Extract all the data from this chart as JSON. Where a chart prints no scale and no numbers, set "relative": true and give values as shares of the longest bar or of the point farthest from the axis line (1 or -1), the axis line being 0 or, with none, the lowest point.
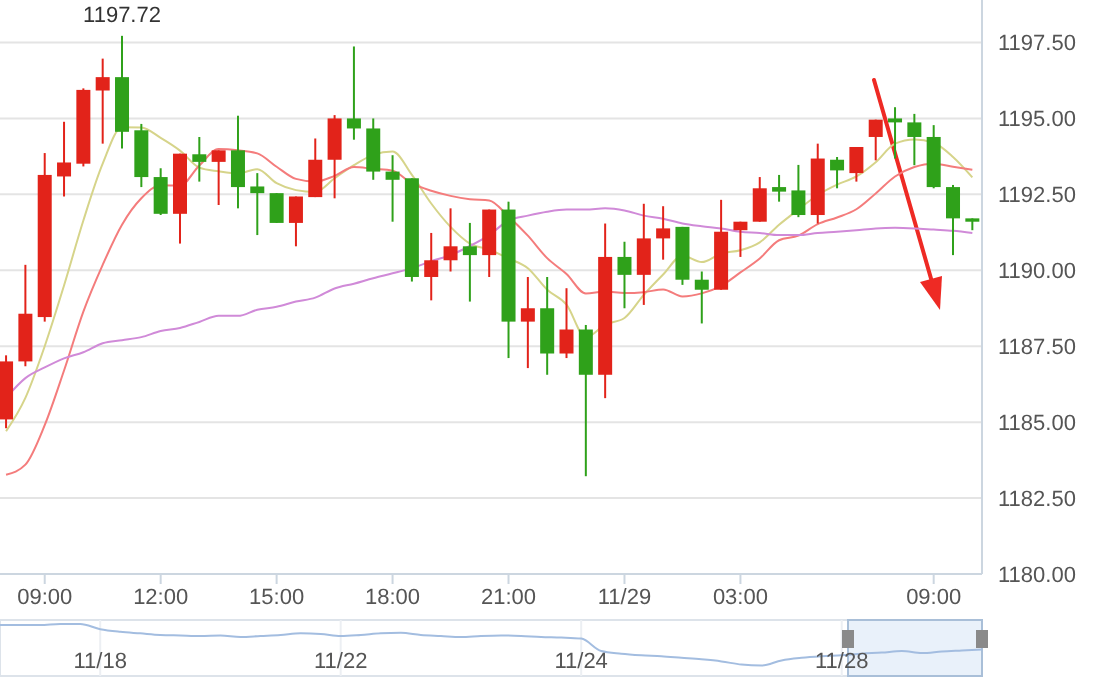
{
  "chart_data": [
    {
      "type": "candlestick",
      "categories": [
        null,
        null,
        "09:00",
        null,
        null,
        null,
        null,
        null,
        "12:00",
        null,
        null,
        null,
        null,
        null,
        "15:00",
        null,
        null,
        null,
        null,
        null,
        "18:00",
        null,
        null,
        null,
        null,
        null,
        "21:00",
        null,
        null,
        null,
        null,
        null,
        "11/29",
        null,
        null,
        null,
        null,
        null,
        "03:00",
        null,
        null,
        null,
        null,
        null,
        null,
        null,
        null,
        null,
        "09:00",
        null,
        null
      ],
      "ohlc": [
        [
          1185.09,
          1187.2,
          1184.8,
          1187.0
        ],
        [
          1187.0,
          1190.18,
          1186.84,
          1188.57
        ],
        [
          1188.46,
          1193.86,
          1188.31,
          1193.14
        ],
        [
          1193.09,
          1194.89,
          1192.43,
          1193.55
        ],
        [
          1193.51,
          1195.99,
          1193.42,
          1195.94
        ],
        [
          1195.92,
          1196.97,
          1194.17,
          1196.36
        ],
        [
          1196.36,
          1197.72,
          1194.01,
          1194.56
        ],
        [
          1194.61,
          1194.82,
          1192.74,
          1193.07
        ],
        [
          1193.07,
          1193.36,
          1191.82,
          1191.86
        ],
        [
          1191.86,
          1193.84,
          1190.88,
          1193.84
        ],
        [
          1193.82,
          1194.39,
          1192.92,
          1193.57
        ],
        [
          1193.57,
          1193.95,
          1192.15,
          1193.95
        ],
        [
          1193.95,
          1195.09,
          1192.04,
          1192.74
        ],
        [
          1192.76,
          1193.2,
          1191.16,
          1192.54
        ],
        [
          1192.54,
          1192.54,
          1191.56,
          1191.56
        ],
        [
          1191.56,
          1192.43,
          1190.79,
          1192.43
        ],
        [
          1192.41,
          1194.34,
          1192.41,
          1193.64
        ],
        [
          1193.64,
          1195.11,
          1192.37,
          1195.0
        ],
        [
          1195.0,
          1197.37,
          1194.3,
          1194.67
        ],
        [
          1194.67,
          1195.0,
          1192.98,
          1193.25
        ],
        [
          1193.25,
          1193.79,
          1191.6,
          1192.98
        ],
        [
          1193.03,
          1193.03,
          1189.63,
          1189.78
        ],
        [
          1189.78,
          1191.23,
          1189.01,
          1190.33
        ],
        [
          1190.33,
          1192.04,
          1189.96,
          1190.79
        ],
        [
          1190.79,
          1191.56,
          1188.97,
          1190.5
        ],
        [
          1190.5,
          1192.0,
          1189.78,
          1192.0
        ],
        [
          1192.0,
          1192.26,
          1187.11,
          1188.31
        ],
        [
          1188.31,
          1189.78,
          1186.78,
          1188.75
        ],
        [
          1188.75,
          1189.78,
          1186.56,
          1187.26
        ],
        [
          1187.26,
          1189.41,
          1187.11,
          1188.05
        ],
        [
          1188.05,
          1188.2,
          1183.22,
          1186.56
        ],
        [
          1186.56,
          1191.54,
          1185.79,
          1190.44
        ],
        [
          1190.44,
          1190.94,
          1188.75,
          1189.85
        ],
        [
          1189.85,
          1192.19,
          1188.86,
          1191.05
        ],
        [
          1191.05,
          1192.11,
          1190.35,
          1191.38
        ],
        [
          1191.43,
          1191.43,
          1189.52,
          1189.69
        ],
        [
          1189.69,
          1189.96,
          1188.25,
          1189.36
        ],
        [
          1189.36,
          1192.32,
          1189.36,
          1191.27
        ],
        [
          1191.32,
          1191.6,
          1190.44,
          1191.6
        ],
        [
          1191.6,
          1193.07,
          1191.6,
          1192.7
        ],
        [
          1192.74,
          1193.14,
          1192.26,
          1192.59
        ],
        [
          1192.63,
          1193.47,
          1191.75,
          1191.82
        ],
        [
          1191.82,
          1194.17,
          1191.54,
          1193.68
        ],
        [
          1193.64,
          1193.73,
          1192.7,
          1193.29
        ],
        [
          1193.2,
          1194.06,
          1192.92,
          1194.06
        ],
        [
          1194.39,
          1194.96,
          1193.62,
          1194.96
        ],
        [
          1195.0,
          1195.37,
          1193.68,
          1194.87
        ],
        [
          1194.87,
          1195.15,
          1193.46,
          1194.39
        ],
        [
          1194.39,
          1194.78,
          1192.7,
          1192.74
        ],
        [
          1192.74,
          1192.81,
          1190.5,
          1191.71
        ],
        [
          1191.71,
          1191.71,
          1191.32,
          1191.6
        ]
      ],
      "colors": [
        "#e2231a",
        "#e2231a",
        "#e2231a",
        "#e2231a",
        "#e2231a",
        "#e2231a",
        "#2fa11a",
        "#2fa11a",
        "#2fa11a",
        "#e2231a",
        "#2fa11a",
        "#e2231a",
        "#2fa11a",
        "#2fa11a",
        "#2fa11a",
        "#e2231a",
        "#e2231a",
        "#e2231a",
        "#2fa11a",
        "#2fa11a",
        "#2fa11a",
        "#2fa11a",
        "#e2231a",
        "#e2231a",
        "#2fa11a",
        "#e2231a",
        "#2fa11a",
        "#e2231a",
        "#2fa11a",
        "#e2231a",
        "#2fa11a",
        "#e2231a",
        "#2fa11a",
        "#e2231a",
        "#e2231a",
        "#2fa11a",
        "#2fa11a",
        "#e2231a",
        "#e2231a",
        "#e2231a",
        "#2fa11a",
        "#2fa11a",
        "#e2231a",
        "#2fa11a",
        "#e2231a",
        "#e2231a",
        "#2fa11a",
        "#2fa11a",
        "#2fa11a",
        "#2fa11a",
        "#2fa11a"
      ],
      "series": [
        {
          "type": "line",
          "color": "#d6d48a",
          "values": [
            1184.7,
            1185.8,
            1187.5,
            1189.5,
            1191.64,
            1193.51,
            1194.71,
            1194.7,
            1194.36,
            1193.94,
            1193.38,
            1193.26,
            1193.19,
            1193.33,
            1192.87,
            1192.64,
            1192.58,
            1193.03,
            1193.46,
            1193.8,
            1193.91,
            1193.14,
            1192.2,
            1191.43,
            1190.88,
            1190.68,
            1190.39,
            1190.07,
            1189.36,
            1188.87,
            1187.79,
            1188.21,
            1188.43,
            1189.19,
            1189.86,
            1190.48,
            1190.27,
            1190.55,
            1190.66,
            1190.92,
            1191.5,
            1192.0,
            1192.48,
            1192.82,
            1193.09,
            1193.56,
            1194.17,
            1194.31,
            1194.2,
            1193.73,
            1193.06
          ]
        },
        {
          "type": "line",
          "color": "#f47c7c",
          "values": [
            1183.27,
            1183.6,
            1184.9,
            1186.7,
            1188.64,
            1190.18,
            1191.5,
            1192.37,
            1192.8,
            1192.79,
            1193.45,
            1193.99,
            1193.95,
            1193.85,
            1193.41,
            1193.01,
            1192.92,
            1193.11,
            1193.4,
            1193.34,
            1193.28,
            1192.86,
            1192.62,
            1192.45,
            1192.34,
            1192.3,
            1191.77,
            1191.14,
            1190.4,
            1189.88,
            1189.24,
            1189.3,
            1189.25,
            1189.28,
            1189.37,
            1189.14,
            1189.24,
            1189.49,
            1189.93,
            1190.39,
            1190.99,
            1191.14,
            1191.52,
            1191.74,
            1192.01,
            1192.53,
            1193.09,
            1193.4,
            1193.51,
            1193.41,
            1193.31
          ]
        },
        {
          "type": "line",
          "color": "#d08ad8",
          "values": [
            1185.8,
            1186.45,
            1186.8,
            1187.1,
            1187.3,
            1187.6,
            1187.7,
            1187.8,
            1188.0,
            1188.1,
            1188.3,
            1188.5,
            1188.5,
            1188.7,
            1188.8,
            1188.97,
            1189.1,
            1189.4,
            1189.56,
            1189.74,
            1189.9,
            1190.07,
            1190.3,
            1190.5,
            1190.8,
            1191.16,
            1191.64,
            1191.8,
            1191.93,
            1192.0,
            1192.0,
            1192.04,
            1191.97,
            1191.8,
            1191.7,
            1191.54,
            1191.45,
            1191.38,
            1191.27,
            1191.23,
            1191.16,
            1191.16,
            1191.23,
            1191.27,
            1191.32,
            1191.38,
            1191.4,
            1191.38,
            1191.34,
            1191.3,
            1191.23
          ]
        }
      ],
      "ylim": [
        1180,
        1198.9
      ],
      "yticks": [
        {
          "value": 1180,
          "label": "1180.00"
        },
        {
          "value": 1182.5,
          "label": "1182.50"
        },
        {
          "value": 1185,
          "label": "1185.00"
        },
        {
          "value": 1187.5,
          "label": "1187.50"
        },
        {
          "value": 1190,
          "label": "1190.00"
        },
        {
          "value": 1192.5,
          "label": "1192.50"
        },
        {
          "value": 1195,
          "label": "1195.00"
        },
        {
          "value": 1197.5,
          "label": "1197.50"
        }
      ],
      "grid": "y",
      "annotations": [
        {
          "text": "1197.72",
          "y": 1197.72
        }
      ]
    },
    {
      "type": "line",
      "relative": true,
      "color": "#a3bde0",
      "grid": "x",
      "categories": [
        null,
        null,
        null,
        null,
        null,
        "11/18",
        null,
        null,
        null,
        null,
        null,
        null,
        null,
        null,
        null,
        null,
        null,
        "11/22",
        null,
        null,
        null,
        null,
        null,
        null,
        null,
        null,
        null,
        null,
        null,
        "11/24",
        null,
        null,
        null,
        null,
        null,
        null,
        null,
        null,
        null,
        null,
        null,
        null,
        "11/28",
        null,
        null,
        null,
        null,
        null,
        null,
        null
      ],
      "values": [
        0.98,
        0.98,
        0.98,
        1,
        1,
        0.9,
        0.85,
        0.82,
        0.79,
        0.78,
        0.77,
        0.78,
        0.75,
        0.77,
        0.79,
        0.82,
        0.81,
        0.77,
        0.79,
        0.82,
        0.83,
        0.79,
        0.77,
        0.75,
        0.77,
        0.78,
        0.77,
        0.75,
        0.74,
        0.72,
        0.48,
        0.43,
        0.4,
        0.38,
        0.35,
        0.32,
        0.28,
        0.22,
        0.2,
        0.3,
        0.35,
        0.38,
        0.4,
        0.43,
        0.45,
        0.48,
        0.44,
        0.47,
        0.49,
        0.51
      ]
    }
  ]
}
